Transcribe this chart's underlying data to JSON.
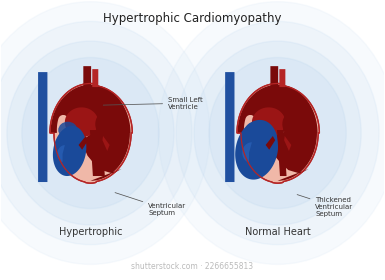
{
  "title": "Hypertrophic Cardiomyopathy",
  "title_fontsize": 8.5,
  "label_left": "Hypertrophic",
  "label_right": "Normal Heart",
  "label_fontsize": 7,
  "annotation_small_lv": "Small Left\nVentricle",
  "annotation_sep_hyp": "Ventricular\nSeptum",
  "annotation_sep_normal": "Thickened\nVentricular\nSeptum",
  "annotation_fontsize": 5.0,
  "color_dark_red": "#7A0A0A",
  "color_mid_red": "#9B1515",
  "color_red": "#B52525",
  "color_pink_outer": "#F0B8A8",
  "color_pink_inner": "#EAA898",
  "color_blue_dark": "#1A4A9A",
  "color_blue_medium": "#2A62B8",
  "color_blue_vessel": "#2050A0",
  "color_blue_glow": "#B8D4EE",
  "color_bg": "#FFFFFF",
  "color_text": "#333333",
  "shutterstock": "shutterstock.com · 2266655813"
}
